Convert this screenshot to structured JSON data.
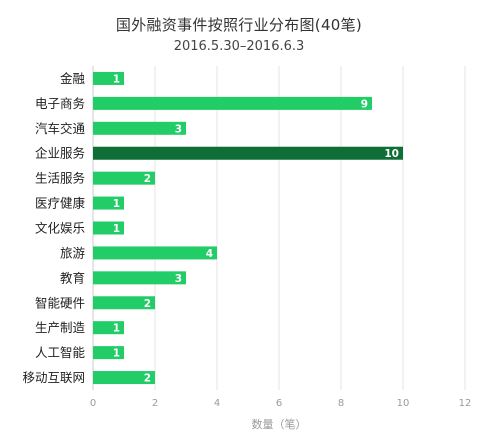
{
  "chart_data": {
    "type": "bar",
    "orientation": "horizontal",
    "title": "国外融资事件按照行业分布图(40笔)",
    "subtitle": "2016.5.30–2016.6.3",
    "xlabel": "数量（笔）",
    "ylabel": "",
    "xlim": [
      0,
      12
    ],
    "xticks": [
      "0",
      "2",
      "4",
      "6",
      "8",
      "10",
      "12"
    ],
    "grid": true,
    "legend": "none",
    "categories": [
      "金融",
      "电子商务",
      "汽车交通",
      "企业服务",
      "生活服务",
      "医疗健康",
      "文化娱乐",
      "旅游",
      "教育",
      "智能硬件",
      "生产制造",
      "人工智能",
      "移动互联网"
    ],
    "values": [
      1,
      9,
      3,
      10,
      2,
      1,
      1,
      4,
      3,
      2,
      1,
      1,
      2
    ],
    "colors": {
      "bar": "#22cc66",
      "bar_highlight": "#0e6e35",
      "grid": "#e6e6e6",
      "axis": "#cccccc"
    },
    "highlight_category": "企业服务"
  }
}
